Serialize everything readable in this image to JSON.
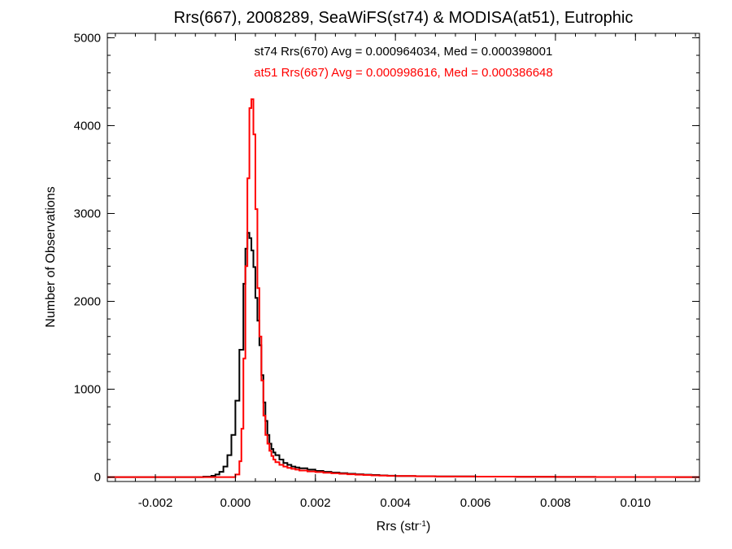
{
  "chart_data": {
    "type": "histogram-step",
    "title": "Rrs(667), 2008289, SeaWiFS(st74) & MODISA(at51), Eutrophic",
    "xlabel": {
      "main": "Rrs (str",
      "sup": "-1",
      "close": ")"
    },
    "ylabel": "Number of Observations",
    "xlim": [
      -0.0032,
      0.0116
    ],
    "ylim": [
      -50,
      5050
    ],
    "x_ticks": [
      {
        "value": -0.002,
        "label": "-0.002"
      },
      {
        "value": 0.0,
        "label": "0.000"
      },
      {
        "value": 0.002,
        "label": "0.002"
      },
      {
        "value": 0.004,
        "label": "0.004"
      },
      {
        "value": 0.006,
        "label": "0.006"
      },
      {
        "value": 0.008,
        "label": "0.008"
      },
      {
        "value": 0.01,
        "label": "0.010"
      }
    ],
    "y_ticks": [
      {
        "value": 0,
        "label": "0"
      },
      {
        "value": 1000,
        "label": "1000"
      },
      {
        "value": 2000,
        "label": "2000"
      },
      {
        "value": 3000,
        "label": "3000"
      },
      {
        "value": 4000,
        "label": "4000"
      },
      {
        "value": 5000,
        "label": "5000"
      }
    ],
    "annotations": [
      {
        "text": "st74 Rrs(670) Avg = 0.000964034, Med = 0.000398001",
        "color": "#000000"
      },
      {
        "text": "at51 Rrs(667) Avg = 0.000998616, Med = 0.000386648",
        "color": "#ff0000"
      }
    ],
    "series": [
      {
        "color": "#000000",
        "x": [
          -0.0032,
          -0.0008,
          -0.0006,
          -0.0005,
          -0.0004,
          -0.0003,
          -0.0002,
          -0.0001,
          0.0,
          0.0001,
          0.0002,
          0.00025,
          0.0003,
          0.00035,
          0.0004,
          0.00045,
          0.0005,
          0.00055,
          0.0006,
          0.00065,
          0.0007,
          0.00075,
          0.0008,
          0.00085,
          0.0009,
          0.00095,
          0.001,
          0.0011,
          0.0012,
          0.0013,
          0.0014,
          0.0015,
          0.0016,
          0.0018,
          0.002,
          0.0022,
          0.0024,
          0.0026,
          0.0028,
          0.003,
          0.0032,
          0.0034,
          0.0036,
          0.0038,
          0.004,
          0.0045,
          0.005,
          0.006,
          0.007,
          0.008,
          0.009,
          0.01,
          0.011,
          0.0116
        ],
        "y": [
          0,
          5,
          15,
          30,
          60,
          120,
          250,
          480,
          870,
          1450,
          2200,
          2600,
          2780,
          2720,
          2580,
          2390,
          2040,
          1780,
          1500,
          1160,
          850,
          640,
          480,
          380,
          320,
          280,
          250,
          200,
          160,
          140,
          120,
          110,
          100,
          85,
          70,
          60,
          52,
          45,
          38,
          32,
          28,
          24,
          20,
          16,
          13,
          10,
          8,
          5,
          3,
          2,
          1,
          1,
          0,
          0
        ]
      },
      {
        "color": "#ff0000",
        "x": [
          -0.0032,
          0.0,
          0.0001,
          0.00015,
          0.0002,
          0.00025,
          0.0003,
          0.00035,
          0.0004,
          0.00045,
          0.0005,
          0.00055,
          0.0006,
          0.00065,
          0.0007,
          0.00075,
          0.0008,
          0.00085,
          0.0009,
          0.00095,
          0.001,
          0.0011,
          0.0012,
          0.0013,
          0.0014,
          0.0015,
          0.0016,
          0.0018,
          0.002,
          0.0022,
          0.0024,
          0.0026,
          0.0028,
          0.003,
          0.0032,
          0.0034,
          0.0036,
          0.0038,
          0.004,
          0.0045,
          0.005,
          0.006,
          0.007,
          0.008,
          0.009,
          0.01,
          0.011,
          0.0116
        ],
        "y": [
          0,
          30,
          180,
          550,
          1350,
          2400,
          3400,
          4200,
          4300,
          3900,
          3050,
          2150,
          1600,
          1100,
          700,
          480,
          380,
          300,
          240,
          200,
          170,
          140,
          120,
          105,
          95,
          85,
          75,
          65,
          58,
          50,
          44,
          38,
          32,
          28,
          24,
          20,
          17,
          14,
          12,
          9,
          7,
          5,
          3,
          2,
          1,
          1,
          0,
          0
        ]
      }
    ]
  }
}
